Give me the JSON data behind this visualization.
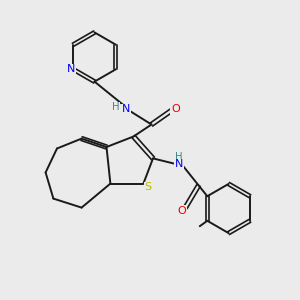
{
  "bg_color": "#ebebeb",
  "bond_color": "#1a1a1a",
  "N_color": "#0000ee",
  "O_color": "#ee0000",
  "S_color": "#bbbb00",
  "H_color": "#3a8888",
  "figsize": [
    3.0,
    3.0
  ],
  "dpi": 100,
  "xlim": [
    0,
    10
  ],
  "ylim": [
    0,
    10
  ]
}
